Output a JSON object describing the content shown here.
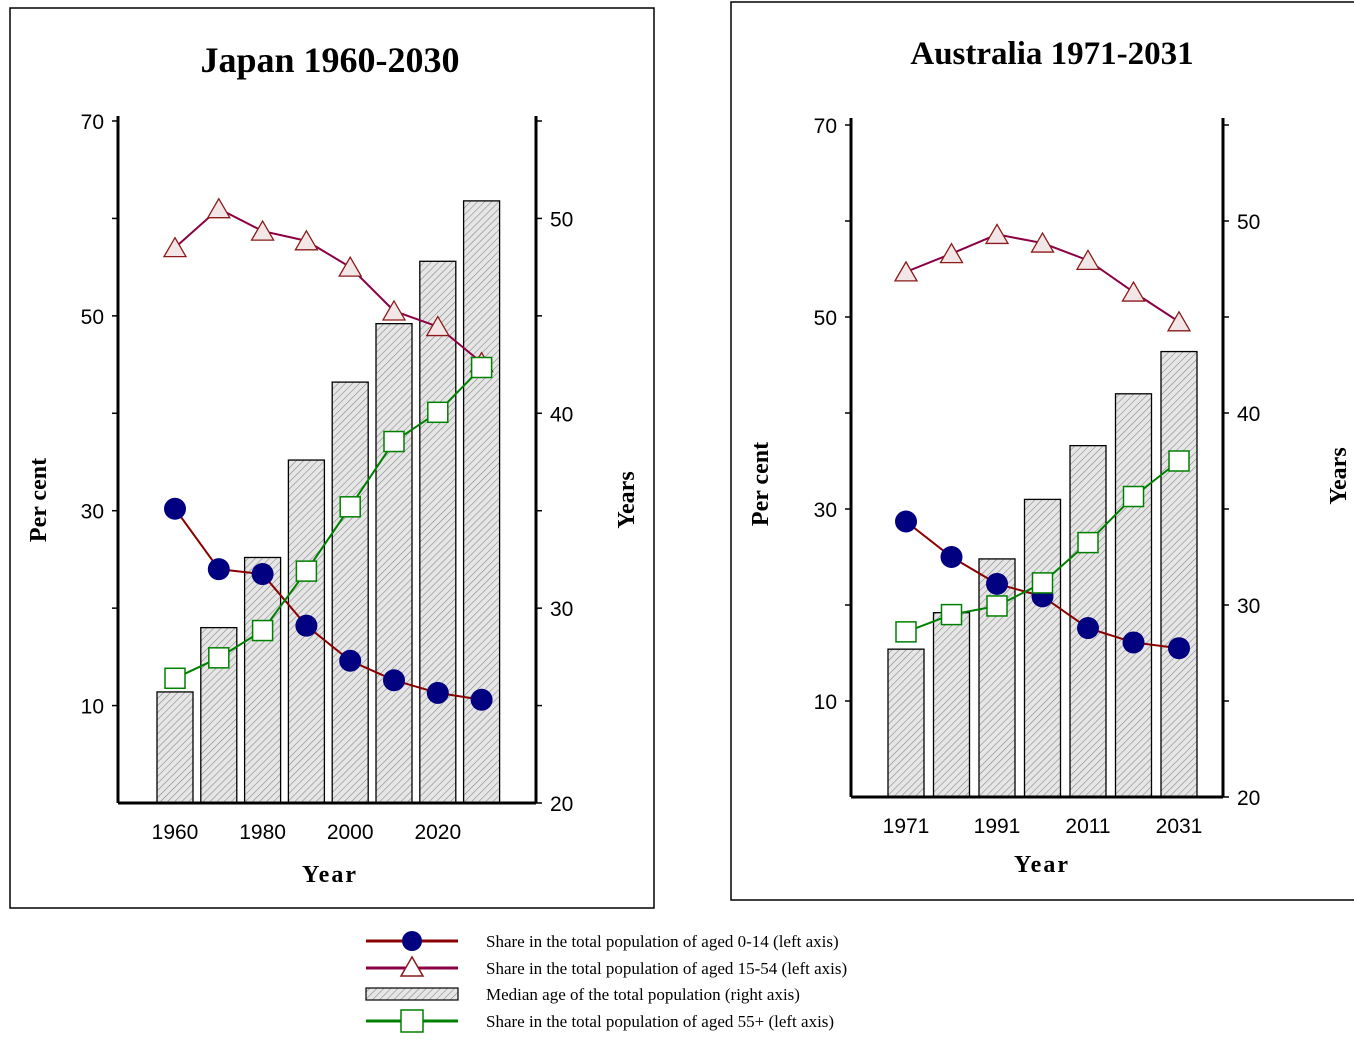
{
  "chart_data": [
    {
      "type": "bar",
      "title": "Japan 1960-2030",
      "xlabel": "Year",
      "ylabel_left": "Per cent",
      "ylabel_right": "Years",
      "x": [
        1960,
        1970,
        1980,
        1990,
        2000,
        2010,
        2020,
        2030
      ],
      "x_tick_labels": [
        "1960",
        "1980",
        "2000",
        "2020"
      ],
      "left_axis": {
        "range": [
          0,
          70
        ],
        "ticks": [
          10,
          30,
          50,
          70
        ]
      },
      "right_axis": {
        "range": [
          20,
          55
        ],
        "ticks": [
          20,
          30,
          40,
          50
        ]
      },
      "series": [
        {
          "name": "Share in the total population of aged 0-14 (left axis)",
          "axis": "left",
          "kind": "line",
          "values": [
            30.2,
            24.0,
            23.5,
            18.2,
            14.6,
            12.6,
            11.3,
            10.6
          ]
        },
        {
          "name": "Share in the total population of aged 15-54 (left axis)",
          "axis": "left",
          "kind": "line",
          "values": [
            57.0,
            61.0,
            58.7,
            57.7,
            55.0,
            50.5,
            48.9,
            45.2
          ]
        },
        {
          "name": "Median age of the total population (right axis)",
          "axis": "right",
          "kind": "bar",
          "values": [
            25.7,
            29.0,
            32.6,
            37.6,
            41.6,
            44.6,
            47.8,
            50.9
          ]
        },
        {
          "name": "Share in the total population of aged 55+ (left axis)",
          "axis": "left",
          "kind": "line",
          "values": [
            12.8,
            14.9,
            17.7,
            23.8,
            30.4,
            37.1,
            40.1,
            44.7
          ]
        }
      ]
    },
    {
      "type": "bar",
      "title": "Australia 1971-2031",
      "xlabel": "Year",
      "ylabel_left": "Per cent",
      "ylabel_right": "Years",
      "x": [
        1971,
        1981,
        1991,
        2001,
        2011,
        2021,
        2031
      ],
      "x_tick_labels": [
        "1971",
        "1991",
        "2011",
        "2031"
      ],
      "left_axis": {
        "range": [
          0,
          70
        ],
        "ticks": [
          10,
          30,
          50,
          70
        ]
      },
      "right_axis": {
        "range": [
          20,
          55
        ],
        "ticks": [
          20,
          30,
          40,
          50
        ]
      },
      "series": [
        {
          "name": "Share in the total population of aged 0-14 (left axis)",
          "axis": "left",
          "kind": "line",
          "values": [
            28.7,
            25.0,
            22.2,
            20.9,
            17.6,
            16.1,
            15.5
          ]
        },
        {
          "name": "Share in the total population of aged 15-54 (left axis)",
          "axis": "left",
          "kind": "line",
          "values": [
            54.7,
            56.6,
            58.6,
            57.7,
            55.9,
            52.6,
            49.5
          ]
        },
        {
          "name": "Median age of the total population (right axis)",
          "axis": "right",
          "kind": "bar",
          "values": [
            27.7,
            29.6,
            32.4,
            35.5,
            38.3,
            41.0,
            43.2
          ]
        },
        {
          "name": "Share in the total population of aged 55+ (left axis)",
          "axis": "left",
          "kind": "line",
          "values": [
            17.2,
            19.0,
            19.9,
            22.3,
            26.5,
            31.3,
            35.0
          ]
        }
      ]
    }
  ],
  "legend": {
    "items": [
      {
        "label": "Share in the total population of aged 0-14 (left axis)",
        "marker": "filled-circle",
        "line_color": "#8B0000",
        "marker_color": "#000080"
      },
      {
        "label": "Share in the total population of aged 15-54 (left axis)",
        "marker": "open-triangle",
        "line_color": "#8B0045",
        "marker_color": "#8B1A1A"
      },
      {
        "label": "Median age of the total population (right axis)",
        "marker": "hatched-bar",
        "line_color": "#000000",
        "marker_color": "#cccccc"
      },
      {
        "label": "Share in the total population of aged 55+ (left axis)",
        "marker": "open-square",
        "line_color": "#008000",
        "marker_color": "#008000"
      }
    ]
  },
  "colors": {
    "circle_line": "#8B0000",
    "circle_fill": "#000080",
    "triangle_line": "#8B0045",
    "triangle_stroke": "#8B1A1A",
    "square_line": "#008000",
    "bar_fill": "#d9d9d9"
  }
}
